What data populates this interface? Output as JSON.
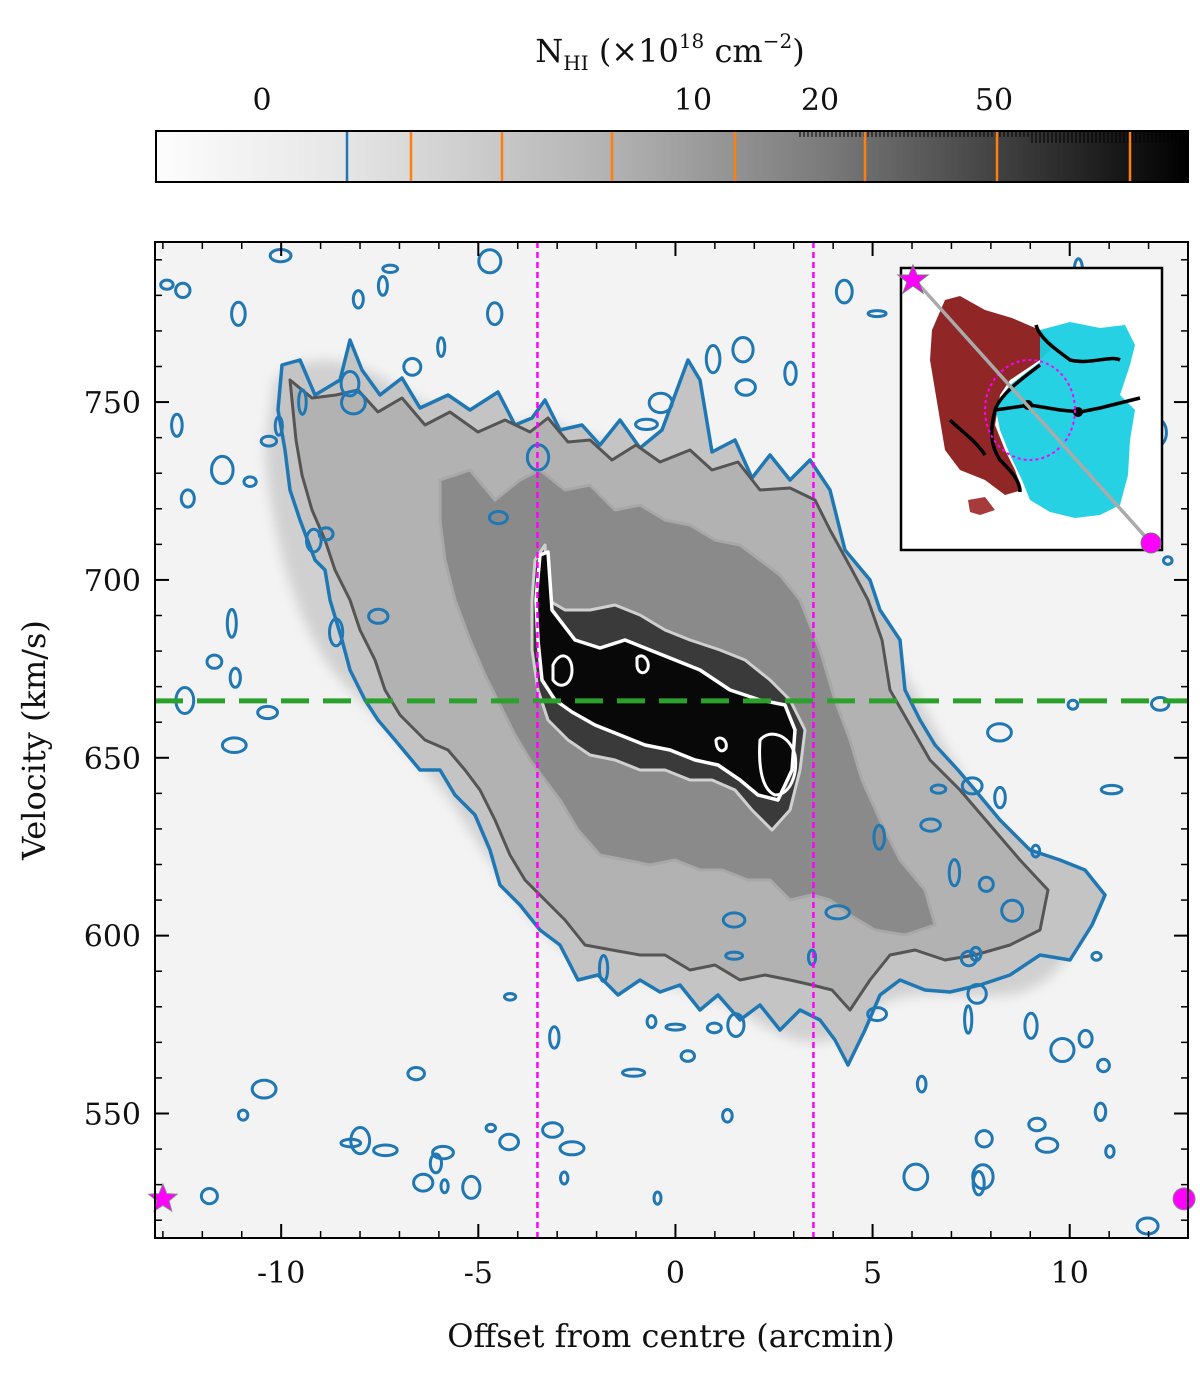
{
  "chart_data": {
    "type": "heatmap",
    "xlabel": "Offset from centre (arcmin)",
    "ylabel": "Velocity (km/s)",
    "xlim": [
      -13.2,
      13.0
    ],
    "ylim": [
      515,
      795
    ],
    "x_ticks": [
      -10,
      -5,
      0,
      5,
      10
    ],
    "x_tick_labels": [
      "-10",
      "-5",
      "0",
      "5",
      "10"
    ],
    "y_ticks": [
      550,
      600,
      650,
      700,
      750
    ],
    "y_tick_labels": [
      "550",
      "600",
      "650",
      "700",
      "750"
    ],
    "systemic_velocity_line": {
      "value": 666,
      "color": "#2ca02c",
      "style": "dashed"
    },
    "vertical_lines": {
      "values": [
        -3.5,
        3.5
      ],
      "color": "#ff00ff",
      "style": "dotted"
    },
    "markers": [
      {
        "shape": "star",
        "x": -13.0,
        "y": 526,
        "color": "#ff00ff"
      },
      {
        "shape": "circle",
        "x": 12.9,
        "y": 526,
        "color": "#ff00ff"
      }
    ],
    "colorbar": {
      "label_base": "N",
      "label_sub": "HI",
      "label_unit": " (×10",
      "label_exp": "18",
      "label_tail": " cm",
      "label_exp2": "−2",
      "label_close": ")",
      "tick_labels": [
        "0",
        "10",
        "20",
        "50"
      ],
      "contour_level_colors": [
        "#1f77b4",
        "#ff7f0e",
        "#ff7f0e",
        "#ff7f0e",
        "#ff7f0e",
        "#ff7f0e",
        "#ff7f0e",
        "#ff7f0e"
      ]
    },
    "contour_colors": {
      "lowest": "#1f77b4",
      "mid": "#555555",
      "inner": "#aaaaaa",
      "highest": "#ffffff"
    },
    "grid": false,
    "inset": {
      "content": "velocity field map with slice path",
      "redshifted_color": "#8b1a1a",
      "blueshifted_color": "#19cfe0",
      "path_color": "#aaaaaa",
      "ellipse_color": "#ff00ff"
    }
  }
}
